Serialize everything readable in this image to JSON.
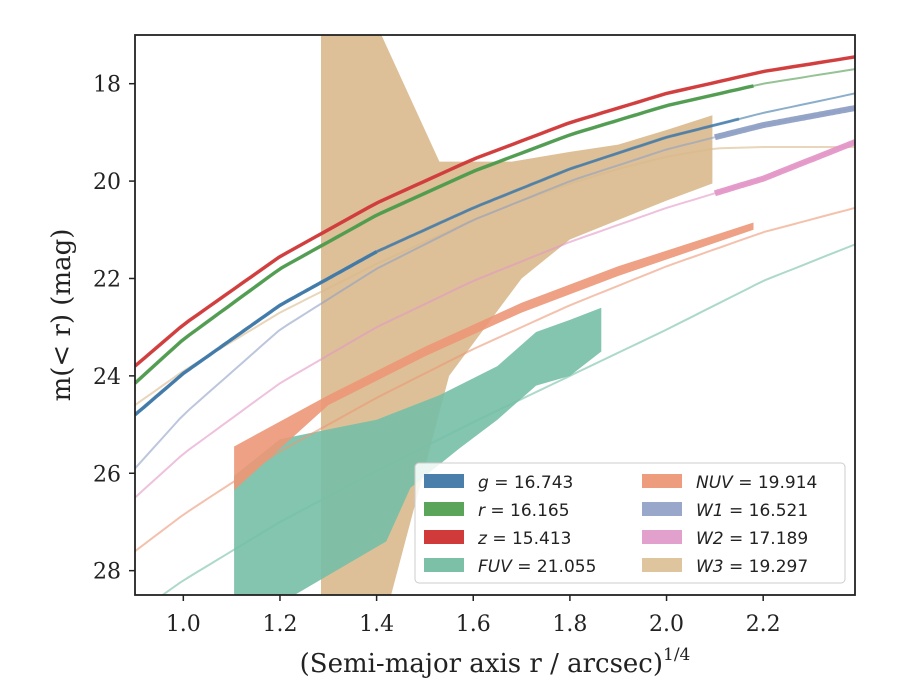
{
  "chart_data": {
    "type": "line",
    "xlabel": "(Semi-major axis r / arcsec)",
    "xlabel_exponent": "1/4",
    "ylabel": "m(< r) (mag)",
    "xlim": [
      0.9,
      2.39
    ],
    "ylim": [
      28.5,
      17.0
    ],
    "y_inverted": true,
    "grid": false,
    "legend_placement": "lower-right",
    "x_ticks": [
      {
        "value": 1.0,
        "label": "1.0"
      },
      {
        "value": 1.2,
        "label": "1.2"
      },
      {
        "value": 1.4,
        "label": "1.4"
      },
      {
        "value": 1.6,
        "label": "1.6"
      },
      {
        "value": 1.8,
        "label": "1.8"
      },
      {
        "value": 2.0,
        "label": "2.0"
      },
      {
        "value": 2.2,
        "label": "2.2"
      }
    ],
    "y_ticks": [
      {
        "value": 18,
        "label": "18"
      },
      {
        "value": 20,
        "label": "20"
      },
      {
        "value": 22,
        "label": "22"
      },
      {
        "value": 24,
        "label": "24"
      },
      {
        "value": 26,
        "label": "26"
      },
      {
        "value": 28,
        "label": "28"
      }
    ],
    "series": [
      {
        "key": "W3",
        "var": "W3",
        "value": "19.297",
        "color": "#d9b98c",
        "model": [
          [
            0.9,
            24.6
          ],
          [
            1.0,
            23.9
          ],
          [
            1.1,
            23.3
          ],
          [
            1.2,
            22.7
          ],
          [
            1.3,
            22.2
          ],
          [
            1.4,
            21.7
          ],
          [
            1.5,
            21.25
          ],
          [
            1.6,
            20.8
          ],
          [
            1.7,
            20.4
          ],
          [
            1.8,
            20.05
          ],
          [
            1.9,
            19.75
          ],
          [
            2.0,
            19.5
          ],
          [
            2.1,
            19.33
          ],
          [
            2.2,
            19.3
          ],
          [
            2.39,
            19.3
          ]
        ],
        "band_upper": [
          [
            1.285,
            17.0
          ],
          [
            1.41,
            17.0
          ],
          [
            1.53,
            19.6
          ],
          [
            1.68,
            19.6
          ],
          [
            1.8,
            19.4
          ],
          [
            1.9,
            19.25
          ],
          [
            2.0,
            18.95
          ],
          [
            2.095,
            18.65
          ],
          [
            2.095,
            20.05
          ]
        ],
        "band_lower": [
          [
            2.095,
            20.05
          ],
          [
            2.0,
            20.4
          ],
          [
            1.9,
            20.8
          ],
          [
            1.8,
            21.2
          ],
          [
            1.7,
            22.0
          ],
          [
            1.55,
            24.0
          ],
          [
            1.43,
            28.5
          ],
          [
            1.285,
            28.5
          ]
        ]
      },
      {
        "key": "FUV",
        "var": "FUV",
        "value": "21.055",
        "color": "#76bfa6",
        "model": [
          [
            0.9,
            28.9
          ],
          [
            1.0,
            28.2
          ],
          [
            1.2,
            27.0
          ],
          [
            1.4,
            25.95
          ],
          [
            1.6,
            24.95
          ],
          [
            1.8,
            24.0
          ],
          [
            2.0,
            23.05
          ],
          [
            2.2,
            22.05
          ],
          [
            2.39,
            21.3
          ]
        ],
        "band_upper": [
          [
            1.105,
            26.05
          ],
          [
            1.2,
            25.3
          ],
          [
            1.3,
            25.1
          ],
          [
            1.4,
            24.9
          ],
          [
            1.53,
            24.4
          ],
          [
            1.65,
            23.8
          ],
          [
            1.73,
            23.1
          ],
          [
            1.8,
            22.85
          ],
          [
            1.865,
            22.6
          ]
        ],
        "band_lower": [
          [
            1.865,
            23.5
          ],
          [
            1.8,
            24.0
          ],
          [
            1.73,
            24.2
          ],
          [
            1.65,
            24.9
          ],
          [
            1.57,
            25.5
          ],
          [
            1.47,
            26.3
          ],
          [
            1.42,
            27.4
          ],
          [
            1.23,
            28.5
          ],
          [
            1.105,
            28.5
          ]
        ]
      },
      {
        "key": "NUV",
        "var": "NUV",
        "value": "19.914",
        "color": "#ec9777",
        "model": [
          [
            0.9,
            27.6
          ],
          [
            1.0,
            26.85
          ],
          [
            1.2,
            25.55
          ],
          [
            1.4,
            24.45
          ],
          [
            1.6,
            23.45
          ],
          [
            1.8,
            22.55
          ],
          [
            2.0,
            21.75
          ],
          [
            2.2,
            21.05
          ],
          [
            2.39,
            20.55
          ]
        ],
        "band_upper": [
          [
            1.105,
            25.45
          ],
          [
            1.3,
            24.4
          ],
          [
            1.5,
            23.4
          ],
          [
            1.7,
            22.5
          ],
          [
            1.9,
            21.75
          ],
          [
            2.18,
            20.85
          ]
        ],
        "band_lower": [
          [
            2.18,
            21.0
          ],
          [
            1.9,
            21.95
          ],
          [
            1.7,
            22.7
          ],
          [
            1.5,
            23.6
          ],
          [
            1.3,
            24.6
          ],
          [
            1.105,
            26.35
          ]
        ]
      },
      {
        "key": "W2",
        "var": "W2",
        "value": "17.189",
        "color": "#e397c7",
        "model": [
          [
            0.9,
            26.5
          ],
          [
            1.0,
            25.6
          ],
          [
            1.2,
            24.15
          ],
          [
            1.4,
            23.0
          ],
          [
            1.6,
            22.05
          ],
          [
            1.8,
            21.25
          ],
          [
            2.0,
            20.55
          ],
          [
            2.2,
            19.95
          ],
          [
            2.39,
            19.2
          ]
        ],
        "thick_from": 2.1
      },
      {
        "key": "W1",
        "var": "W1",
        "value": "16.521",
        "color": "#8fa0c5",
        "model": [
          [
            0.9,
            25.9
          ],
          [
            1.0,
            24.8
          ],
          [
            1.2,
            23.05
          ],
          [
            1.4,
            21.8
          ],
          [
            1.6,
            20.8
          ],
          [
            1.8,
            20.0
          ],
          [
            2.0,
            19.35
          ],
          [
            2.2,
            18.85
          ],
          [
            2.39,
            18.5
          ]
        ],
        "thick_from": 2.1
      },
      {
        "key": "g",
        "var": "g",
        "value": "16.743",
        "color": "#3e78a8",
        "model": [
          [
            0.9,
            24.8
          ],
          [
            1.0,
            23.95
          ],
          [
            1.2,
            22.55
          ],
          [
            1.4,
            21.45
          ],
          [
            1.6,
            20.55
          ],
          [
            1.8,
            19.75
          ],
          [
            2.0,
            19.1
          ],
          [
            2.2,
            18.6
          ],
          [
            2.39,
            18.2
          ]
        ],
        "thick_to": 1.4,
        "thin_from": 2.15
      },
      {
        "key": "r",
        "var": "r",
        "value": "16.165",
        "color": "#4e9b4e",
        "model": [
          [
            0.9,
            24.15
          ],
          [
            1.0,
            23.25
          ],
          [
            1.2,
            21.8
          ],
          [
            1.4,
            20.7
          ],
          [
            1.6,
            19.8
          ],
          [
            1.8,
            19.05
          ],
          [
            2.0,
            18.45
          ],
          [
            2.2,
            18.0
          ],
          [
            2.39,
            17.7
          ]
        ],
        "thick_to": 2.18
      },
      {
        "key": "z",
        "var": "z",
        "value": "15.413",
        "color": "#d03a3a",
        "model": [
          [
            0.9,
            23.8
          ],
          [
            1.0,
            22.95
          ],
          [
            1.2,
            21.55
          ],
          [
            1.4,
            20.45
          ],
          [
            1.6,
            19.55
          ],
          [
            1.8,
            18.8
          ],
          [
            2.0,
            18.2
          ],
          [
            2.2,
            17.75
          ],
          [
            2.39,
            17.45
          ]
        ],
        "thick_to": 2.39
      }
    ],
    "legend": [
      {
        "key": "g",
        "var": "g",
        "value": "16.743",
        "color": "#4a7eab"
      },
      {
        "key": "r",
        "var": "r",
        "value": "16.165",
        "color": "#5aa55a"
      },
      {
        "key": "z",
        "var": "z",
        "value": "15.413",
        "color": "#d03a3a"
      },
      {
        "key": "FUV",
        "var": "FUV",
        "value": "21.055",
        "color": "#7dc0a8"
      },
      {
        "key": "NUV",
        "var": "NUV",
        "value": "19.914",
        "color": "#ee9c7e"
      },
      {
        "key": "W1",
        "var": "W1",
        "value": "16.521",
        "color": "#98a7ca"
      },
      {
        "key": "W2",
        "var": "W2",
        "value": "17.189",
        "color": "#e2a0cc"
      },
      {
        "key": "W3",
        "var": "W3",
        "value": "19.297",
        "color": "#dfc59e"
      }
    ]
  }
}
